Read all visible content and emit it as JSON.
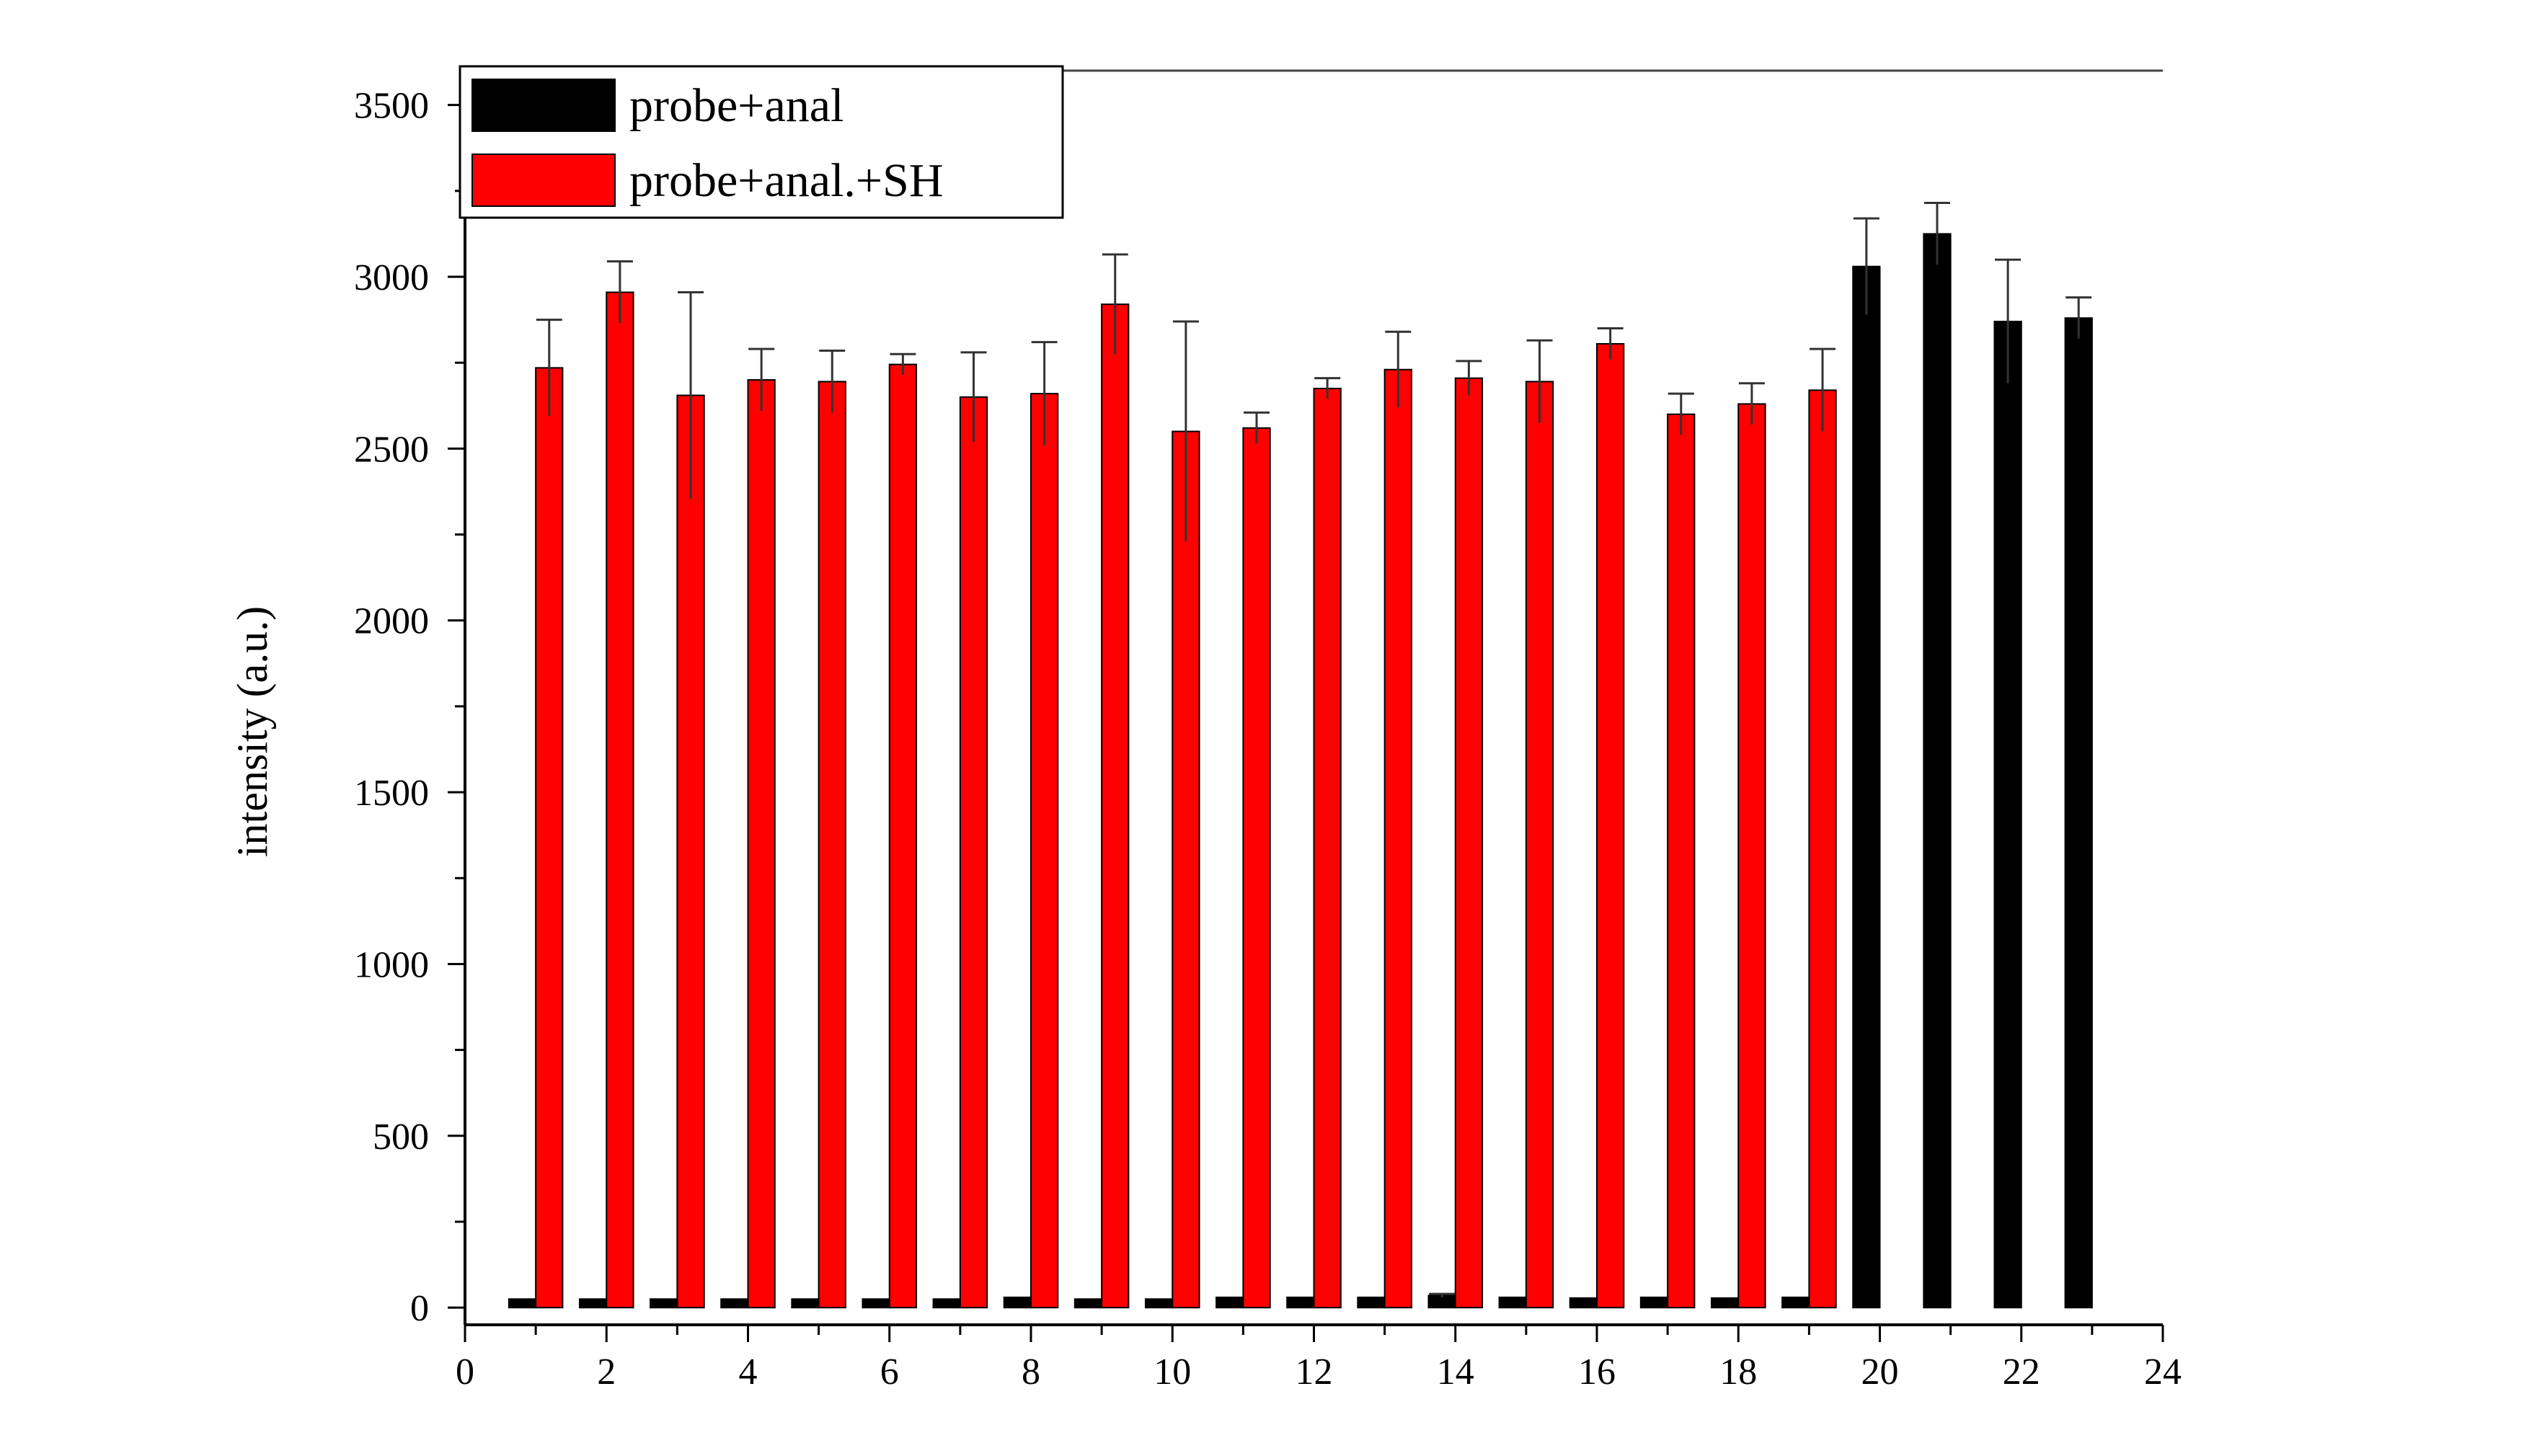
{
  "chart_data": {
    "type": "bar",
    "title": "",
    "xlabel": "",
    "ylabel": "intensity (a.u.)",
    "xlim": [
      0,
      24
    ],
    "ylim": [
      -50,
      3600
    ],
    "xticks": [
      "0",
      "2",
      "4",
      "6",
      "8",
      "10",
      "12",
      "14",
      "16",
      "18",
      "20",
      "22",
      "24"
    ],
    "yticks": [
      "0",
      "500",
      "1000",
      "1500",
      "2000",
      "2500",
      "3000",
      "3500"
    ],
    "grid": false,
    "legend_position": "top-left",
    "series": [
      {
        "name": "probe+anal",
        "color": "#000000",
        "x": [
          1,
          2,
          3,
          4,
          5,
          6,
          7,
          8,
          9,
          10,
          11,
          12,
          13,
          14,
          15,
          16,
          17,
          18,
          19,
          20,
          21,
          22,
          23
        ],
        "values": [
          25,
          25,
          25,
          25,
          25,
          25,
          25,
          30,
          25,
          25,
          30,
          30,
          30,
          35,
          30,
          28,
          30,
          28,
          30,
          3030,
          3125,
          2870,
          2880
        ],
        "errors": [
          0,
          0,
          0,
          0,
          0,
          0,
          0,
          0,
          0,
          0,
          0,
          0,
          0,
          5,
          0,
          0,
          0,
          0,
          0,
          140,
          90,
          180,
          60
        ]
      },
      {
        "name": "probe+anal.+SH",
        "color": "#ff0000",
        "x": [
          1,
          2,
          3,
          4,
          5,
          6,
          7,
          8,
          9,
          10,
          11,
          12,
          13,
          14,
          15,
          16,
          17,
          18,
          19
        ],
        "values": [
          2735,
          2955,
          2655,
          2700,
          2695,
          2745,
          2650,
          2660,
          2920,
          2550,
          2560,
          2675,
          2730,
          2705,
          2695,
          2805,
          2600,
          2630,
          2670
        ],
        "errors": [
          140,
          90,
          300,
          90,
          90,
          30,
          130,
          150,
          145,
          320,
          45,
          30,
          110,
          50,
          120,
          45,
          60,
          60,
          120
        ]
      }
    ]
  }
}
